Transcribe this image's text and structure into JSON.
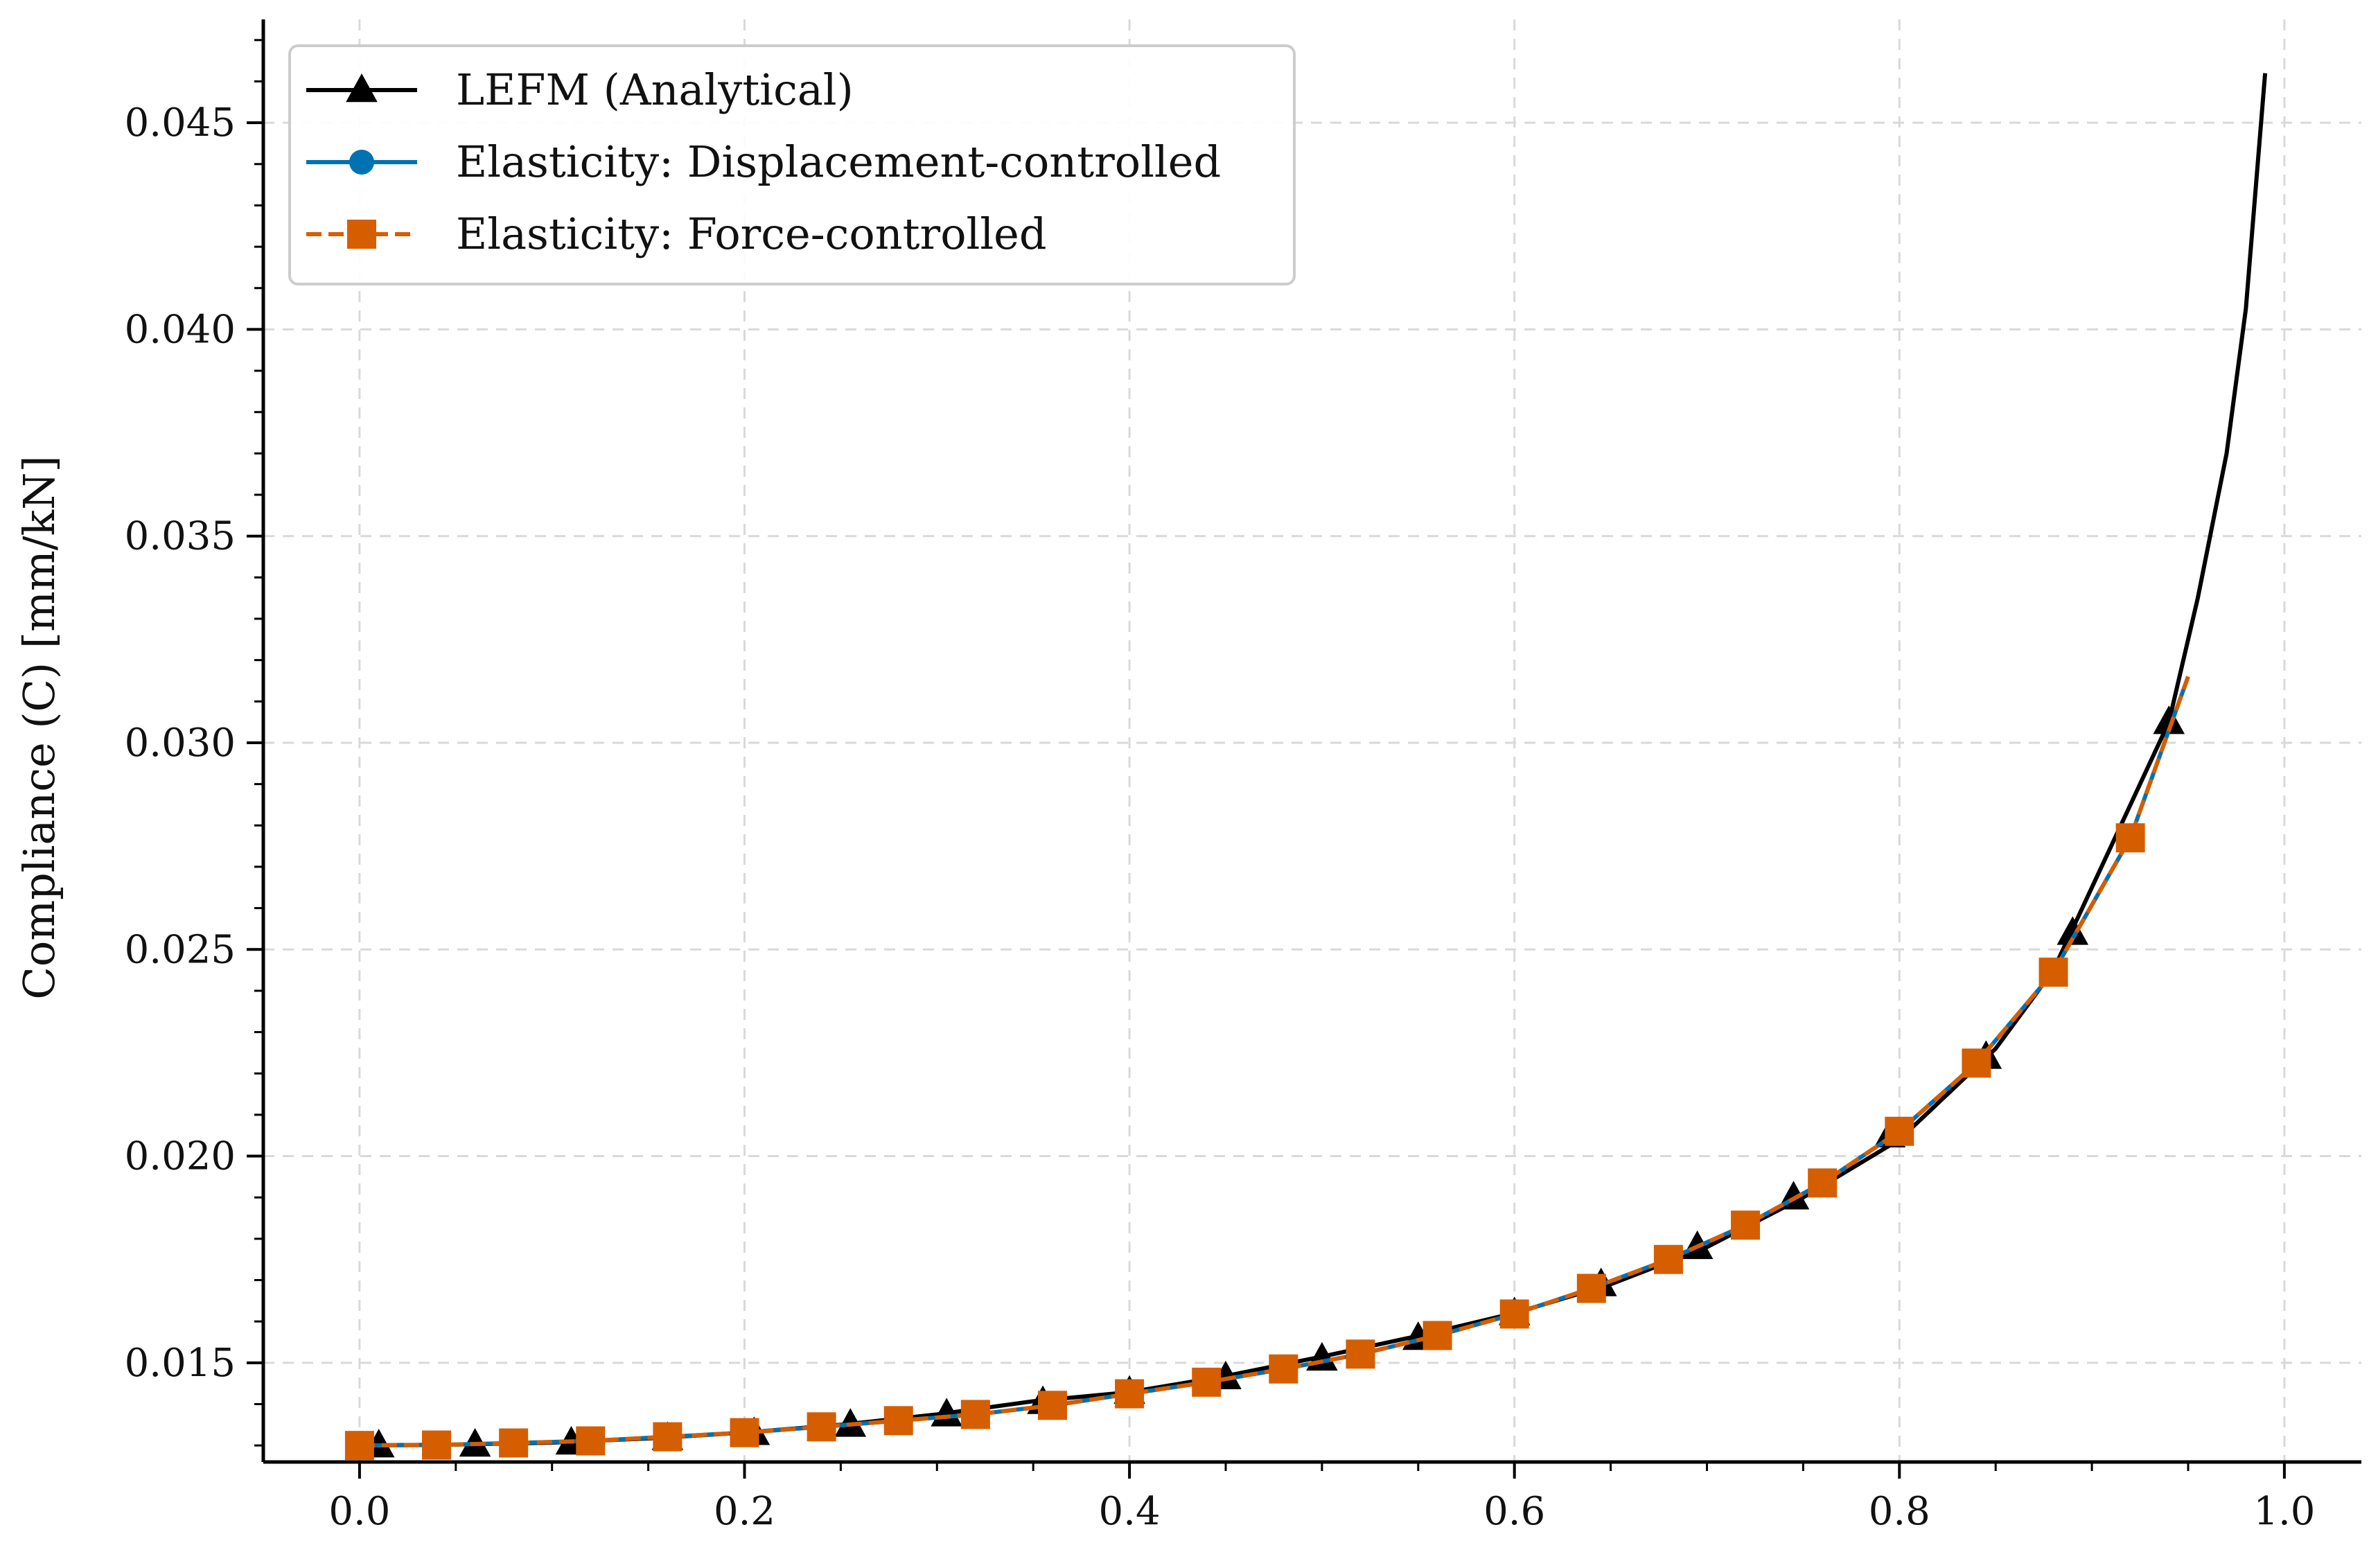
{
  "chart_data": {
    "type": "line",
    "title": "",
    "xlabel": "",
    "ylabel": "Compliance (C) [mm/kN]",
    "xlim": [
      -0.05,
      1.04
    ],
    "ylim": [
      0.0126,
      0.0475
    ],
    "x_ticks": [
      {
        "value": 0.0,
        "label": "0.0"
      },
      {
        "value": 0.2,
        "label": "0.2"
      },
      {
        "value": 0.4,
        "label": "0.4"
      },
      {
        "value": 0.6,
        "label": "0.6"
      },
      {
        "value": 0.8,
        "label": "0.8"
      },
      {
        "value": 1.0,
        "label": "1.0"
      }
    ],
    "y_ticks": [
      {
        "value": 0.015,
        "label": "0.015"
      },
      {
        "value": 0.02,
        "label": "0.020"
      },
      {
        "value": 0.025,
        "label": "0.025"
      },
      {
        "value": 0.03,
        "label": "0.030"
      },
      {
        "value": 0.035,
        "label": "0.035"
      },
      {
        "value": 0.04,
        "label": "0.040"
      },
      {
        "value": 0.045,
        "label": "0.045"
      }
    ],
    "grid": true,
    "legend_position": "top-left",
    "series": [
      {
        "name": "LEFM (Analytical)",
        "color": "#000000",
        "line_style": "solid",
        "marker": "triangle",
        "x": [
          0.0,
          0.05,
          0.1,
          0.15,
          0.2,
          0.25,
          0.3,
          0.35,
          0.4,
          0.45,
          0.5,
          0.55,
          0.6,
          0.65,
          0.7,
          0.75,
          0.8,
          0.85,
          0.88,
          0.91,
          0.94,
          0.955,
          0.97,
          0.98,
          0.99
        ],
        "y": [
          0.013,
          0.01302,
          0.01307,
          0.01317,
          0.01331,
          0.0135,
          0.01375,
          0.01407,
          0.01429,
          0.01468,
          0.01515,
          0.01565,
          0.0162,
          0.0169,
          0.0178,
          0.019,
          0.0204,
          0.0226,
          0.0245,
          0.0275,
          0.0305,
          0.0335,
          0.037,
          0.0405,
          0.0462
        ],
        "marker_x": [
          0.01,
          0.06,
          0.11,
          0.16,
          0.205,
          0.255,
          0.305,
          0.355,
          0.4,
          0.45,
          0.5,
          0.55,
          0.6,
          0.645,
          0.695,
          0.745,
          0.795,
          0.845,
          0.89,
          0.94
        ],
        "marker_y": [
          0.013,
          0.01302,
          0.01307,
          0.01318,
          0.0133,
          0.0135,
          0.01375,
          0.01405,
          0.0143,
          0.01465,
          0.0151,
          0.0156,
          0.0162,
          0.0169,
          0.0178,
          0.019,
          0.0205,
          0.0224,
          0.0254,
          0.0305
        ]
      },
      {
        "name": "Elasticity: Displacement-controlled",
        "color": "#0072B2",
        "line_style": "solid",
        "marker": "circle",
        "x": [
          0.0,
          0.04,
          0.08,
          0.12,
          0.16,
          0.2,
          0.24,
          0.28,
          0.32,
          0.36,
          0.4,
          0.44,
          0.48,
          0.52,
          0.56,
          0.6,
          0.64,
          0.68,
          0.72,
          0.76,
          0.8,
          0.84,
          0.88,
          0.92,
          0.95
        ],
        "y": [
          0.013,
          0.01301,
          0.01306,
          0.01311,
          0.01321,
          0.01331,
          0.01345,
          0.0136,
          0.01375,
          0.01397,
          0.01425,
          0.01453,
          0.01485,
          0.01521,
          0.01566,
          0.01618,
          0.0168,
          0.0175,
          0.01833,
          0.01935,
          0.0206,
          0.02225,
          0.02445,
          0.0277,
          0.0316
        ],
        "marker_x": [
          0.0,
          0.04,
          0.08,
          0.12,
          0.16,
          0.2,
          0.24,
          0.28,
          0.32,
          0.36,
          0.4,
          0.44,
          0.48,
          0.52,
          0.56,
          0.6,
          0.64,
          0.68,
          0.72,
          0.76,
          0.8,
          0.84,
          0.88,
          0.92
        ],
        "marker_y": [
          0.013,
          0.01301,
          0.01306,
          0.01311,
          0.01321,
          0.01331,
          0.01345,
          0.0136,
          0.01375,
          0.01397,
          0.01425,
          0.01453,
          0.01485,
          0.01521,
          0.01566,
          0.01618,
          0.0168,
          0.0175,
          0.01833,
          0.01935,
          0.0206,
          0.02225,
          0.02445,
          0.0277
        ]
      },
      {
        "name": "Elasticity: Force-controlled",
        "color": "#D55E00",
        "line_style": "dashed",
        "marker": "square",
        "x": [
          0.0,
          0.04,
          0.08,
          0.12,
          0.16,
          0.2,
          0.24,
          0.28,
          0.32,
          0.36,
          0.4,
          0.44,
          0.48,
          0.52,
          0.56,
          0.6,
          0.64,
          0.68,
          0.72,
          0.76,
          0.8,
          0.84,
          0.88,
          0.92,
          0.95
        ],
        "y": [
          0.013,
          0.01301,
          0.01306,
          0.01311,
          0.01321,
          0.01331,
          0.01345,
          0.0136,
          0.01375,
          0.01397,
          0.01425,
          0.01453,
          0.01485,
          0.01521,
          0.01566,
          0.01618,
          0.0168,
          0.0175,
          0.01833,
          0.01935,
          0.0206,
          0.02225,
          0.02445,
          0.0277,
          0.0316
        ],
        "marker_x": [
          0.0,
          0.04,
          0.08,
          0.12,
          0.16,
          0.2,
          0.24,
          0.28,
          0.32,
          0.36,
          0.4,
          0.44,
          0.48,
          0.52,
          0.56,
          0.6,
          0.64,
          0.68,
          0.72,
          0.76,
          0.8,
          0.84,
          0.88,
          0.92
        ],
        "marker_y": [
          0.013,
          0.01301,
          0.01306,
          0.01311,
          0.01321,
          0.01331,
          0.01345,
          0.0136,
          0.01375,
          0.01397,
          0.01425,
          0.01453,
          0.01485,
          0.01521,
          0.01566,
          0.01618,
          0.0168,
          0.0175,
          0.01833,
          0.01935,
          0.0206,
          0.02225,
          0.02445,
          0.0277
        ]
      }
    ]
  }
}
